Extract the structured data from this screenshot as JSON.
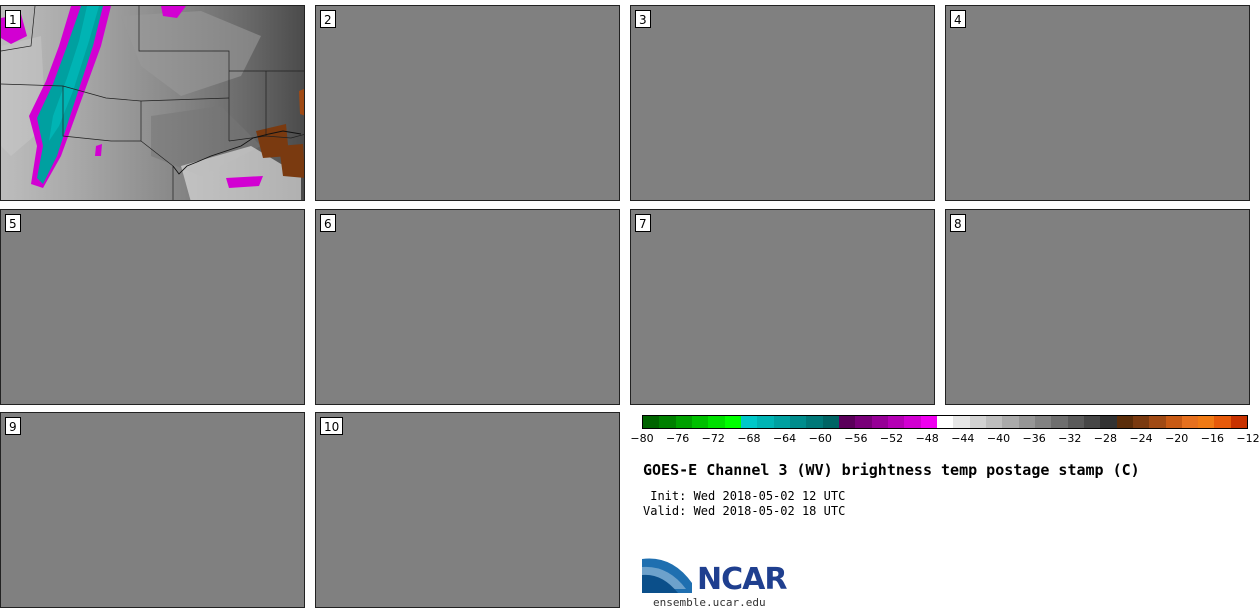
{
  "panels": [
    {
      "label": "1"
    },
    {
      "label": "2"
    },
    {
      "label": "3"
    },
    {
      "label": "4"
    },
    {
      "label": "5"
    },
    {
      "label": "6"
    },
    {
      "label": "7"
    },
    {
      "label": "8"
    },
    {
      "label": "9"
    },
    {
      "label": "10"
    }
  ],
  "colorbar": {
    "colors": [
      "#006400",
      "#008000",
      "#00a000",
      "#00c000",
      "#00e000",
      "#00ff00",
      "#00c8c8",
      "#00b4b4",
      "#00a0a0",
      "#008c8c",
      "#007878",
      "#006464",
      "#5a005a",
      "#780078",
      "#960096",
      "#b400b4",
      "#d200d2",
      "#f000f0",
      "#ffffff",
      "#e6e6e6",
      "#d2d2d2",
      "#bebebe",
      "#aaaaaa",
      "#969696",
      "#828282",
      "#6e6e6e",
      "#5a5a5a",
      "#464646",
      "#323232",
      "#5a2d0a",
      "#7a3a10",
      "#a04a14",
      "#c85a14",
      "#e6701e",
      "#f07a14",
      "#e65a0a",
      "#c83200"
    ],
    "ticks": [
      "−80",
      "−76",
      "−72",
      "−68",
      "−64",
      "−60",
      "−56",
      "−52",
      "−48",
      "−44",
      "−40",
      "−36",
      "−32",
      "−28",
      "−24",
      "−20",
      "−16",
      "−12"
    ]
  },
  "title": "GOES-E Channel 3 (WV) brightness temp postage stamp (C)",
  "init": " Init: Wed 2018-05-02 12 UTC",
  "valid": "Valid: Wed 2018-05-02 18 UTC",
  "logo_text": "NCAR",
  "site": "ensemble.ucar.edu"
}
